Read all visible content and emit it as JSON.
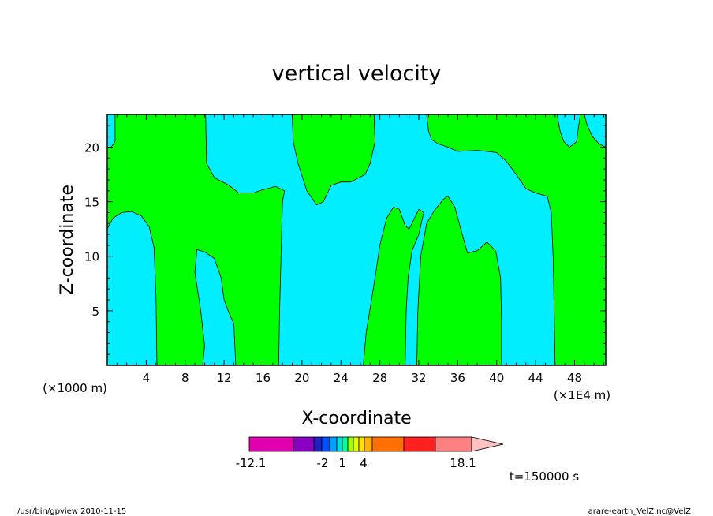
{
  "chart_data": {
    "type": "contour",
    "title": "vertical velocity",
    "xlabel": "X-coordinate",
    "ylabel": "Z-coordinate",
    "x_unit_left": "(×1000 m)",
    "x_unit_right": "(×1E4 m)",
    "xlim": [
      0,
      51.2
    ],
    "ylim": [
      0,
      23
    ],
    "x_ticks": [
      4,
      8,
      12,
      16,
      20,
      24,
      28,
      32,
      36,
      40,
      44,
      48
    ],
    "y_ticks": [
      5,
      10,
      15,
      20
    ],
    "colors": {
      "positive_fill": "#00ff00",
      "negative_fill": "#00eeff",
      "contour_line": "#000000"
    },
    "regions": [
      {
        "level": "positive",
        "polygon": [
          [
            0.0,
            12.5
          ],
          [
            0.6,
            13.5
          ],
          [
            1.5,
            14.0
          ],
          [
            2.5,
            14.1
          ],
          [
            3.5,
            13.7
          ],
          [
            4.3,
            12.7
          ],
          [
            4.8,
            10.8
          ],
          [
            5.0,
            6.5
          ],
          [
            5.1,
            0.0
          ],
          [
            9.8,
            0.0
          ],
          [
            10.0,
            1.8
          ],
          [
            9.6,
            5.0
          ],
          [
            9.0,
            8.5
          ],
          [
            9.2,
            10.6
          ],
          [
            10.0,
            10.4
          ],
          [
            11.0,
            9.8
          ],
          [
            11.7,
            8.0
          ],
          [
            12.0,
            6.0
          ],
          [
            12.5,
            4.8
          ],
          [
            13.0,
            3.8
          ],
          [
            13.2,
            0.0
          ],
          [
            17.6,
            0.0
          ],
          [
            17.7,
            5.0
          ],
          [
            17.9,
            12.0
          ],
          [
            18.0,
            15.0
          ],
          [
            18.2,
            16.0
          ],
          [
            17.3,
            16.4
          ],
          [
            16.0,
            16.1
          ],
          [
            15.0,
            15.8
          ],
          [
            13.5,
            15.8
          ],
          [
            12.5,
            16.5
          ],
          [
            11.0,
            17.2
          ],
          [
            10.2,
            18.5
          ],
          [
            10.1,
            23.0
          ],
          [
            0.8,
            23.0
          ],
          [
            0.8,
            20.5
          ],
          [
            0.4,
            20.0
          ],
          [
            0.0,
            20.0
          ]
        ]
      },
      {
        "level": "positive",
        "polygon": [
          [
            19.0,
            23.0
          ],
          [
            19.1,
            20.5
          ],
          [
            19.6,
            18.5
          ],
          [
            20.5,
            16.0
          ],
          [
            21.5,
            14.7
          ],
          [
            22.2,
            15.0
          ],
          [
            23.0,
            16.5
          ],
          [
            24.0,
            16.8
          ],
          [
            25.0,
            16.8
          ],
          [
            26.5,
            17.5
          ],
          [
            27.0,
            18.5
          ],
          [
            27.5,
            20.5
          ],
          [
            27.4,
            23.0
          ]
        ]
      },
      {
        "level": "positive",
        "polygon": [
          [
            26.3,
            0.0
          ],
          [
            26.6,
            3.0
          ],
          [
            27.5,
            8.0
          ],
          [
            28.0,
            11.0
          ],
          [
            28.7,
            13.5
          ],
          [
            29.4,
            14.5
          ],
          [
            30.0,
            14.3
          ],
          [
            30.6,
            12.8
          ],
          [
            31.0,
            12.5
          ],
          [
            31.4,
            13.2
          ],
          [
            32.0,
            14.3
          ],
          [
            32.5,
            14.0
          ],
          [
            32.0,
            12.0
          ],
          [
            31.3,
            10.5
          ],
          [
            30.9,
            8.0
          ],
          [
            30.7,
            5.0
          ],
          [
            30.6,
            0.0
          ]
        ]
      },
      {
        "level": "positive",
        "polygon": [
          [
            31.8,
            0.0
          ],
          [
            31.9,
            5.0
          ],
          [
            32.2,
            10.0
          ],
          [
            32.8,
            13.0
          ],
          [
            33.6,
            14.2
          ],
          [
            34.5,
            15.2
          ],
          [
            35.0,
            15.5
          ],
          [
            35.7,
            14.5
          ],
          [
            36.3,
            12.5
          ],
          [
            37.0,
            10.3
          ],
          [
            38.0,
            10.5
          ],
          [
            39.0,
            11.3
          ],
          [
            39.9,
            10.5
          ],
          [
            40.4,
            8.0
          ],
          [
            40.5,
            4.0
          ],
          [
            40.5,
            0.0
          ]
        ]
      },
      {
        "level": "positive",
        "polygon": [
          [
            46.0,
            0.0
          ],
          [
            45.9,
            5.0
          ],
          [
            45.8,
            10.0
          ],
          [
            45.6,
            14.0
          ],
          [
            45.2,
            15.5
          ],
          [
            44.0,
            15.8
          ],
          [
            43.0,
            16.2
          ],
          [
            42.0,
            17.5
          ],
          [
            41.0,
            18.7
          ],
          [
            40.0,
            19.5
          ],
          [
            38.0,
            19.7
          ],
          [
            36.0,
            19.6
          ],
          [
            35.0,
            20.0
          ],
          [
            34.0,
            20.3
          ],
          [
            33.3,
            20.7
          ],
          [
            33.0,
            21.5
          ],
          [
            32.8,
            23.0
          ],
          [
            46.2,
            23.0
          ],
          [
            46.5,
            21.5
          ],
          [
            46.9,
            20.5
          ],
          [
            47.5,
            20.0
          ],
          [
            48.2,
            20.5
          ],
          [
            48.4,
            21.8
          ],
          [
            48.6,
            23.0
          ],
          [
            49.0,
            23.0
          ],
          [
            49.3,
            22.0
          ],
          [
            49.8,
            21.0
          ],
          [
            50.5,
            20.3
          ],
          [
            51.2,
            20.0
          ],
          [
            51.2,
            0.0
          ]
        ]
      }
    ]
  },
  "colorbar": {
    "tick_labels": [
      "-12.1",
      "-2",
      "1",
      "4",
      "18.1"
    ],
    "swatches": [
      "#e000b0",
      "#8a00c0",
      "#2020c0",
      "#0050ff",
      "#00a0ff",
      "#00e0e0",
      "#00ffa0",
      "#a0ff00",
      "#e0ff00",
      "#ffe000",
      "#ffb000",
      "#ff7000",
      "#ff2020",
      "#ff8080",
      "#ffc0c0"
    ]
  },
  "time_label": "t=150000 s",
  "footer": {
    "left": "/usr/bin/gpview   2010-11-15",
    "right": "arare-earth_VelZ.nc@VelZ"
  }
}
